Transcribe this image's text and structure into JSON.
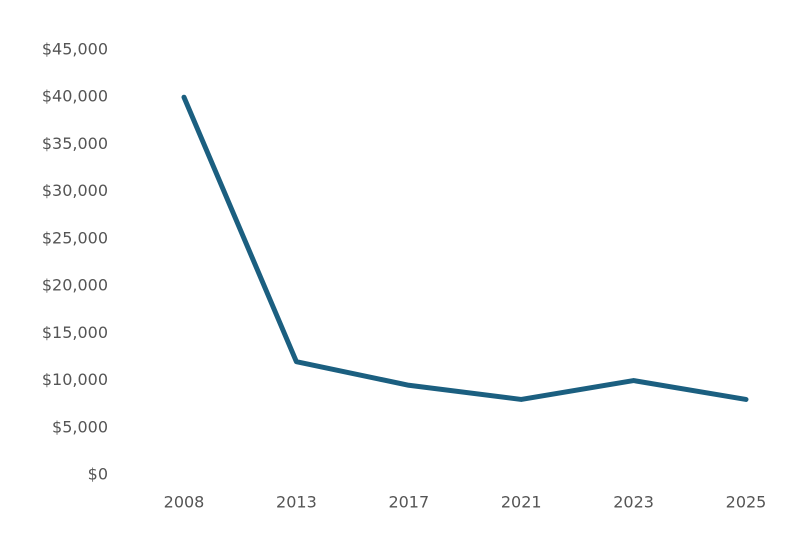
{
  "chart_data": {
    "type": "line",
    "categories": [
      "2008",
      "2013",
      "2017",
      "2021",
      "2023",
      "2025"
    ],
    "series": [
      {
        "color": "#1b5f80",
        "values": [
          40000,
          12000,
          9500,
          8000,
          10000,
          8000
        ]
      }
    ],
    "ylim": [
      0,
      45000
    ],
    "yticks": [
      {
        "value": 0,
        "label": "$0"
      },
      {
        "value": 5000,
        "label": "$5,000"
      },
      {
        "value": 10000,
        "label": "$10,000"
      },
      {
        "value": 15000,
        "label": "$15,000"
      },
      {
        "value": 20000,
        "label": "$20,000"
      },
      {
        "value": 25000,
        "label": "$25,000"
      },
      {
        "value": 30000,
        "label": "$30,000"
      },
      {
        "value": 35000,
        "label": "$35,000"
      },
      {
        "value": 40000,
        "label": "$40,000"
      },
      {
        "value": 45000,
        "label": "$45,000"
      }
    ],
    "grid": false
  }
}
